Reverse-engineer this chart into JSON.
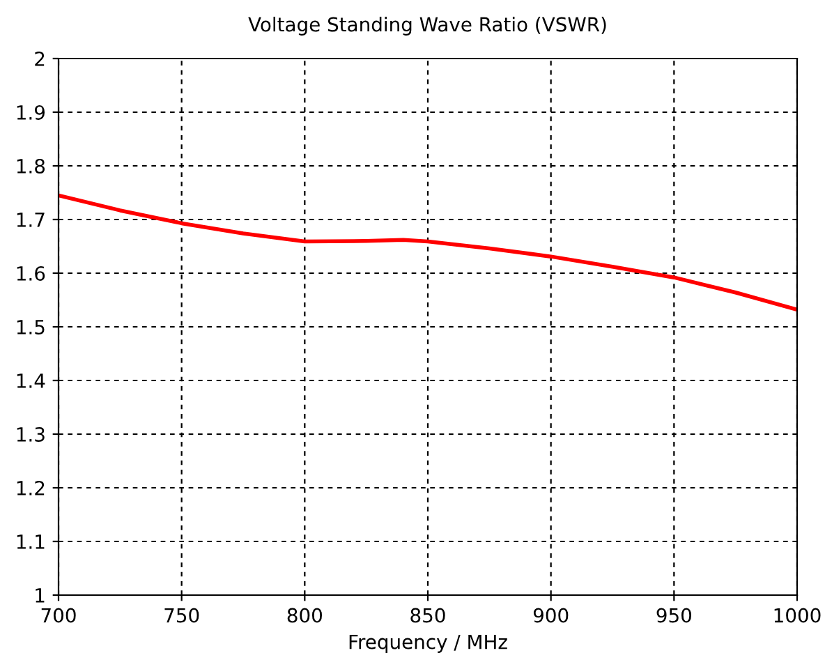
{
  "chart_data": {
    "type": "line",
    "title": "Voltage Standing Wave Ratio (VSWR)",
    "xlabel": "Frequency / MHz",
    "x": [
      700,
      725,
      750,
      775,
      800,
      825,
      840,
      850,
      875,
      900,
      925,
      950,
      975,
      1000
    ],
    "series": [
      {
        "color": "#ff0000",
        "values": [
          1.745,
          1.717,
          1.693,
          1.674,
          1.659,
          1.66,
          1.662,
          1.659,
          1.646,
          1.631,
          1.612,
          1.592,
          1.564,
          1.532
        ]
      }
    ],
    "xlim": [
      700,
      1000
    ],
    "ylim": [
      1,
      2
    ],
    "xticks": [
      700,
      750,
      800,
      850,
      900,
      950,
      1000
    ],
    "yticks": [
      1,
      1.1,
      1.2,
      1.3,
      1.4,
      1.5,
      1.6,
      1.7,
      1.8,
      1.9,
      2
    ],
    "grid": true,
    "line_style": "solid",
    "marker": "none",
    "legend": false
  }
}
